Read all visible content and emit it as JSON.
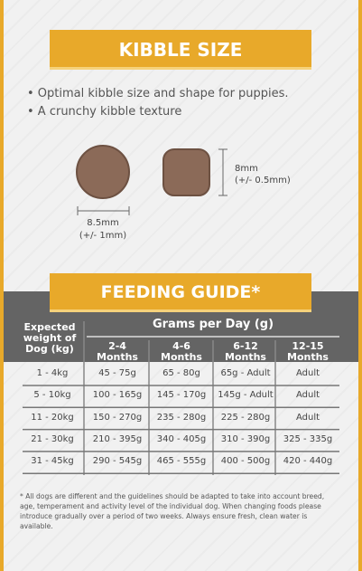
{
  "kibble": {
    "title": "KIBBLE SIZE",
    "bullets": [
      "• Optimal kibble size and shape for puppies.",
      "• A crunchy kibble texture"
    ],
    "square_size": "8mm",
    "square_tolerance": "(+/- 0.5mm)",
    "round_size": "8.5mm",
    "round_tolerance": "(+/- 1mm)"
  },
  "feeding": {
    "title": "FEEDING GUIDE*",
    "row_header": "Expected weight of Dog (kg)",
    "group_header": "Grams per Day (g)",
    "columns": [
      "2-4 Months",
      "4-6 Months",
      "6-12 Months",
      "12-15 Months"
    ],
    "rows": [
      [
        "1 - 4kg",
        "45 - 75g",
        "65 - 80g",
        "65g - Adult",
        "Adult"
      ],
      [
        "5 - 10kg",
        "100 - 165g",
        "145 - 170g",
        "145g - Adult",
        "Adult"
      ],
      [
        "11 - 20kg",
        "150 - 270g",
        "235 - 280g",
        "225 - 280g",
        "Adult"
      ],
      [
        "21 - 30kg",
        "210 - 395g",
        "340 - 405g",
        "310 - 390g",
        "325 - 335g"
      ],
      [
        "31 - 45kg",
        "290 - 545g",
        "465 - 555g",
        "400 - 500g",
        "420 - 440g"
      ]
    ]
  },
  "footnote": "* All dogs are different and the guidelines should be adapted to take into account breed, age, temperament and activity level of the individual dog. When changing foods please introduce gradually over a period of two weeks. Always ensure fresh, clean water is available."
}
